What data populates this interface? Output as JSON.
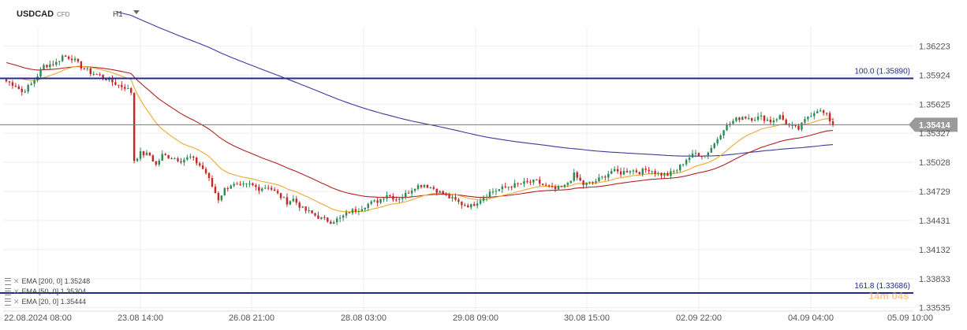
{
  "header": {
    "symbol": "USDCAD",
    "symbol_type": "CFD",
    "timeframe": "H1"
  },
  "indicators_legend": [
    {
      "label": "EMA [200, 0]",
      "value": "1.35248",
      "color": "#3b3b9e"
    },
    {
      "label": "EMA [50, 0]",
      "value": "1.35304",
      "color": "#b22222"
    },
    {
      "label": "EMA [20, 0]",
      "value": "1.35444",
      "color": "#f0a830"
    }
  ],
  "watermark": "14m 04s",
  "chart_data": {
    "type": "candlestick",
    "instrument": "USDCAD",
    "timeframe": "H1",
    "y_ticks": [
      "1.36223",
      "1.35924",
      "1.35625",
      "1.35327",
      "1.35028",
      "1.34729",
      "1.34431",
      "1.34132",
      "1.33833",
      "1.33535"
    ],
    "ylim": [
      1.335,
      1.3642
    ],
    "x_ticks": [
      "22.08.2024 08:00",
      "23.08 14:00",
      "26.08 21:00",
      "28.08 03:00",
      "29.08 09:00",
      "30.08 15:00",
      "02.09 22:00",
      "04.09 04:00",
      "05.09 10:00"
    ],
    "current_price": "1.35414",
    "current_price_value": 1.35414,
    "levels": [
      {
        "label": "100.0 (1.35890)",
        "value": 1.3589,
        "color": "#1f2d8a"
      },
      {
        "label": "161.8 (1.33686)",
        "value": 1.33686,
        "color": "#1f2d8a"
      }
    ],
    "up_color": "#2e8b57",
    "down_color": "#c62828",
    "ema_colors": {
      "ema200": "#3b3b9e",
      "ema50": "#b22222",
      "ema20": "#f0a830"
    },
    "close_anchors": [
      [
        0,
        1.3586
      ],
      [
        3,
        1.3582
      ],
      [
        5,
        1.3575
      ],
      [
        8,
        1.3583
      ],
      [
        10,
        1.3592
      ],
      [
        12,
        1.3602
      ],
      [
        16,
        1.3605
      ],
      [
        18,
        1.3612
      ],
      [
        21,
        1.361
      ],
      [
        24,
        1.3601
      ],
      [
        27,
        1.3595
      ],
      [
        30,
        1.3592
      ],
      [
        33,
        1.3587
      ],
      [
        36,
        1.3582
      ],
      [
        38,
        1.358
      ],
      [
        40,
        1.3575
      ],
      [
        41,
        1.3505
      ],
      [
        43,
        1.3512
      ],
      [
        46,
        1.351
      ],
      [
        48,
        1.35
      ],
      [
        50,
        1.351
      ],
      [
        53,
        1.3508
      ],
      [
        56,
        1.3505
      ],
      [
        59,
        1.3508
      ],
      [
        62,
        1.35
      ],
      [
        64,
        1.3492
      ],
      [
        66,
        1.3478
      ],
      [
        68,
        1.3465
      ],
      [
        70,
        1.3475
      ],
      [
        72,
        1.348
      ],
      [
        75,
        1.3478
      ],
      [
        78,
        1.348
      ],
      [
        81,
        1.3476
      ],
      [
        84,
        1.3478
      ],
      [
        87,
        1.347
      ],
      [
        90,
        1.3462
      ],
      [
        92,
        1.3465
      ],
      [
        95,
        1.3455
      ],
      [
        98,
        1.345
      ],
      [
        101,
        1.3445
      ],
      [
        104,
        1.3442
      ],
      [
        107,
        1.3445
      ],
      [
        110,
        1.3452
      ],
      [
        113,
        1.3455
      ],
      [
        116,
        1.346
      ],
      [
        119,
        1.3463
      ],
      [
        122,
        1.347
      ],
      [
        125,
        1.3465
      ],
      [
        128,
        1.347
      ],
      [
        131,
        1.3478
      ],
      [
        134,
        1.348
      ],
      [
        137,
        1.3476
      ],
      [
        140,
        1.347
      ],
      [
        143,
        1.3465
      ],
      [
        146,
        1.346
      ],
      [
        149,
        1.3458
      ],
      [
        152,
        1.3465
      ],
      [
        155,
        1.3472
      ],
      [
        158,
        1.3475
      ],
      [
        161,
        1.3478
      ],
      [
        164,
        1.348
      ],
      [
        167,
        1.3482
      ],
      [
        170,
        1.3483
      ],
      [
        173,
        1.3478
      ],
      [
        176,
        1.3475
      ],
      [
        179,
        1.3478
      ],
      [
        182,
        1.349
      ],
      [
        185,
        1.348
      ],
      [
        188,
        1.3482
      ],
      [
        191,
        1.3487
      ],
      [
        194,
        1.3494
      ],
      [
        197,
        1.3492
      ],
      [
        200,
        1.3495
      ],
      [
        203,
        1.3493
      ],
      [
        206,
        1.3496
      ],
      [
        209,
        1.3491
      ],
      [
        212,
        1.349
      ],
      [
        215,
        1.3495
      ],
      [
        218,
        1.3506
      ],
      [
        221,
        1.3512
      ],
      [
        224,
        1.351
      ],
      [
        227,
        1.3522
      ],
      [
        230,
        1.3538
      ],
      [
        233,
        1.3545
      ],
      [
        236,
        1.355
      ],
      [
        239,
        1.3548
      ],
      [
        242,
        1.3549
      ],
      [
        245,
        1.3545
      ],
      [
        248,
        1.355
      ],
      [
        251,
        1.354
      ],
      [
        254,
        1.3537
      ],
      [
        257,
        1.355
      ],
      [
        260,
        1.3557
      ],
      [
        263,
        1.3551
      ],
      [
        265,
        1.3541
      ]
    ]
  }
}
